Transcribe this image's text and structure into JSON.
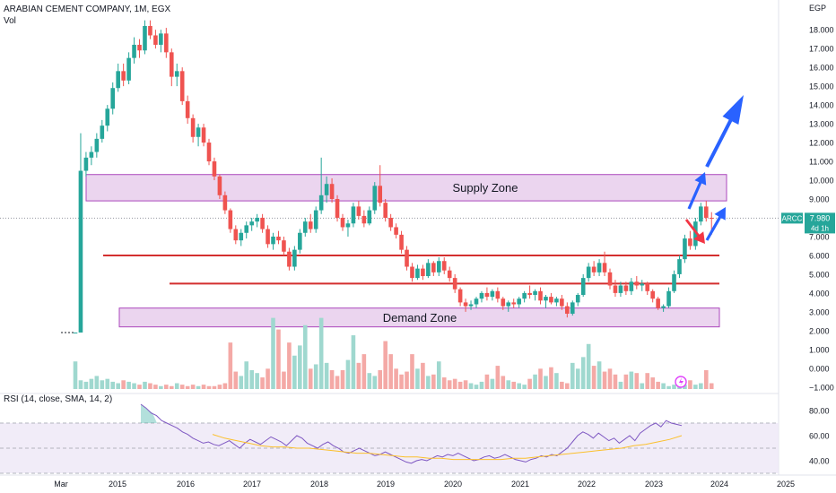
{
  "header": {
    "title": "ARABIAN CEMENT COMPANY, 1M, EGX",
    "vol_label": "Vol",
    "unit": "EGP"
  },
  "rsi": {
    "label": "RSI (14, close, SMA, 14, 2)",
    "ticks": [
      "80.00",
      "60.00",
      "40.00"
    ],
    "band_upper": 70,
    "band_lower": 30
  },
  "badge": {
    "ticker": "ARCC",
    "price": "7.980",
    "countdown": "4d 1h"
  },
  "zones": {
    "supply": {
      "label": "Supply Zone",
      "low": 8.9,
      "high": 10.3
    },
    "demand": {
      "label": "Demand Zone",
      "low": 2.2,
      "high": 3.2
    },
    "lines": [
      6.0,
      4.5
    ]
  },
  "colors": {
    "up": "#26a69a",
    "down": "#ef5350",
    "vol_up": "#9fd8cf",
    "vol_down": "#f4a9a6",
    "zone_fill": "#e1bee7",
    "zone_border": "#ab47bc",
    "line": "#d32f2f",
    "arrow_blue": "#2962ff",
    "arrow_red": "#f23645",
    "rsi": "#7e57c2",
    "rsi_ma": "#fbc02d",
    "badge": "#26a69a",
    "flash": "#e040fb"
  },
  "chart_data": {
    "type": "candlestick",
    "title": "ARABIAN CEMENT COMPANY, 1M, EGX",
    "ylim": [
      -1.2,
      19.2
    ],
    "yticks": [
      "18.000",
      "17.000",
      "16.000",
      "15.000",
      "14.000",
      "13.000",
      "12.000",
      "11.000",
      "10.000",
      "9.000",
      "8.000",
      "7.000",
      "6.000",
      "5.000",
      "4.000",
      "3.000",
      "2.000",
      "1.000",
      "0.000",
      "−1.000"
    ],
    "xticks": [
      "Mar",
      "2015",
      "2016",
      "2017",
      "2018",
      "2019",
      "2020",
      "2021",
      "2022",
      "2023",
      "2024",
      "2025"
    ],
    "current_price": 7.98,
    "candles": [
      [
        1.9,
        1.9,
        1.9,
        1.9
      ],
      [
        1.9,
        12.5,
        1.9,
        10.5
      ],
      [
        10.5,
        11.5,
        10.2,
        11.2
      ],
      [
        11.2,
        11.8,
        10.8,
        11.5
      ],
      [
        11.5,
        12.5,
        11.2,
        12.2
      ],
      [
        12.2,
        13.2,
        12.0,
        12.9
      ],
      [
        12.9,
        14.0,
        12.6,
        13.8
      ],
      [
        13.8,
        15.2,
        13.5,
        14.9
      ],
      [
        14.9,
        16.2,
        14.7,
        15.8
      ],
      [
        15.8,
        16.2,
        15.0,
        15.3
      ],
      [
        15.3,
        16.8,
        15.1,
        16.5
      ],
      [
        16.5,
        17.6,
        16.2,
        17.2
      ],
      [
        17.2,
        17.5,
        16.5,
        16.9
      ],
      [
        16.9,
        18.5,
        16.7,
        18.2
      ],
      [
        18.2,
        18.5,
        17.5,
        17.7
      ],
      [
        17.7,
        18.0,
        17.0,
        17.2
      ],
      [
        17.2,
        18.0,
        16.8,
        17.8
      ],
      [
        17.8,
        18.1,
        16.5,
        16.8
      ],
      [
        16.8,
        17.0,
        15.0,
        15.5
      ],
      [
        15.5,
        16.2,
        15.0,
        15.8
      ],
      [
        15.8,
        16.0,
        14.0,
        14.2
      ],
      [
        14.2,
        14.5,
        13.0,
        13.3
      ],
      [
        13.3,
        13.5,
        12.0,
        12.3
      ],
      [
        12.3,
        13.0,
        11.8,
        12.8
      ],
      [
        12.8,
        13.0,
        11.8,
        12.0
      ],
      [
        12.0,
        12.2,
        10.8,
        11.0
      ],
      [
        11.0,
        11.2,
        10.0,
        10.2
      ],
      [
        10.2,
        10.3,
        9.0,
        9.2
      ],
      [
        9.2,
        9.4,
        8.2,
        8.4
      ],
      [
        8.4,
        8.5,
        7.2,
        7.4
      ],
      [
        7.4,
        7.6,
        6.6,
        6.8
      ],
      [
        6.8,
        7.4,
        6.5,
        7.2
      ],
      [
        7.2,
        7.8,
        6.9,
        7.6
      ],
      [
        7.6,
        8.0,
        7.3,
        7.8
      ],
      [
        7.8,
        8.2,
        7.5,
        8.0
      ],
      [
        8.0,
        8.2,
        7.2,
        7.4
      ],
      [
        7.4,
        7.6,
        6.4,
        6.6
      ],
      [
        6.6,
        7.2,
        6.3,
        7.0
      ],
      [
        7.0,
        7.3,
        6.6,
        6.8
      ],
      [
        6.8,
        7.0,
        6.0,
        6.2
      ],
      [
        6.2,
        6.4,
        5.2,
        5.4
      ],
      [
        5.4,
        6.5,
        5.2,
        6.3
      ],
      [
        6.3,
        7.4,
        6.1,
        7.2
      ],
      [
        7.2,
        8.0,
        7.0,
        7.8
      ],
      [
        7.8,
        8.2,
        7.2,
        7.4
      ],
      [
        7.4,
        8.6,
        7.2,
        8.4
      ],
      [
        8.4,
        11.2,
        8.2,
        9.2
      ],
      [
        9.2,
        10.2,
        8.8,
        9.8
      ],
      [
        9.8,
        10.1,
        8.8,
        9.0
      ],
      [
        9.0,
        9.2,
        7.8,
        8.0
      ],
      [
        8.0,
        8.2,
        7.3,
        7.5
      ],
      [
        7.5,
        7.9,
        7.0,
        7.7
      ],
      [
        7.7,
        8.8,
        7.5,
        8.6
      ],
      [
        8.6,
        8.9,
        7.9,
        8.1
      ],
      [
        8.1,
        8.4,
        7.5,
        7.7
      ],
      [
        7.7,
        8.6,
        7.6,
        8.4
      ],
      [
        8.4,
        9.9,
        8.2,
        9.7
      ],
      [
        9.7,
        10.8,
        8.6,
        8.8
      ],
      [
        8.8,
        9.0,
        7.8,
        8.0
      ],
      [
        8.0,
        8.2,
        7.3,
        7.5
      ],
      [
        7.5,
        7.7,
        6.9,
        7.1
      ],
      [
        7.1,
        7.3,
        6.1,
        6.3
      ],
      [
        6.3,
        6.5,
        5.2,
        5.4
      ],
      [
        5.4,
        5.6,
        4.6,
        4.8
      ],
      [
        4.8,
        5.5,
        4.7,
        5.3
      ],
      [
        5.3,
        5.5,
        4.7,
        4.9
      ],
      [
        4.9,
        5.8,
        4.8,
        5.6
      ],
      [
        5.6,
        5.7,
        4.9,
        5.1
      ],
      [
        5.1,
        5.9,
        4.9,
        5.7
      ],
      [
        5.7,
        5.9,
        5.0,
        5.2
      ],
      [
        5.2,
        5.4,
        4.6,
        4.8
      ],
      [
        4.8,
        5.0,
        4.0,
        4.2
      ],
      [
        4.2,
        4.3,
        3.3,
        3.5
      ],
      [
        3.5,
        3.7,
        3.0,
        3.3
      ],
      [
        3.3,
        3.6,
        3.1,
        3.4
      ],
      [
        3.4,
        3.8,
        3.2,
        3.7
      ],
      [
        3.7,
        4.1,
        3.5,
        4.0
      ],
      [
        4.0,
        4.3,
        3.6,
        3.8
      ],
      [
        3.8,
        4.2,
        3.6,
        4.1
      ],
      [
        4.1,
        4.3,
        3.5,
        3.7
      ],
      [
        3.7,
        3.8,
        3.1,
        3.3
      ],
      [
        3.3,
        3.6,
        3.0,
        3.5
      ],
      [
        3.5,
        3.7,
        3.2,
        3.4
      ],
      [
        3.4,
        3.8,
        3.2,
        3.7
      ],
      [
        3.7,
        4.1,
        3.5,
        4.0
      ],
      [
        4.0,
        4.4,
        3.7,
        3.9
      ],
      [
        3.9,
        4.2,
        3.6,
        4.1
      ],
      [
        4.1,
        4.3,
        3.4,
        3.6
      ],
      [
        3.6,
        3.9,
        3.2,
        3.8
      ],
      [
        3.8,
        4.0,
        3.4,
        3.5
      ],
      [
        3.5,
        3.8,
        3.3,
        3.7
      ],
      [
        3.7,
        3.9,
        3.1,
        3.3
      ],
      [
        3.3,
        3.5,
        2.7,
        2.9
      ],
      [
        2.9,
        3.6,
        2.8,
        3.5
      ],
      [
        3.5,
        4.0,
        3.3,
        3.9
      ],
      [
        3.9,
        5.0,
        3.8,
        4.8
      ],
      [
        4.8,
        5.6,
        4.6,
        5.4
      ],
      [
        5.4,
        5.7,
        4.9,
        5.1
      ],
      [
        5.1,
        5.8,
        4.9,
        5.6
      ],
      [
        5.6,
        6.2,
        4.9,
        5.1
      ],
      [
        5.1,
        5.3,
        4.2,
        4.4
      ],
      [
        4.4,
        4.7,
        3.8,
        4.0
      ],
      [
        4.0,
        4.6,
        3.8,
        4.4
      ],
      [
        4.4,
        4.6,
        3.9,
        4.1
      ],
      [
        4.1,
        4.8,
        3.9,
        4.6
      ],
      [
        4.6,
        4.9,
        4.2,
        4.4
      ],
      [
        4.4,
        4.7,
        4.1,
        4.5
      ],
      [
        4.5,
        4.6,
        3.9,
        4.1
      ],
      [
        4.1,
        4.2,
        3.5,
        3.7
      ],
      [
        3.7,
        3.8,
        3.1,
        3.2
      ],
      [
        3.2,
        3.4,
        3.0,
        3.3
      ],
      [
        3.3,
        4.3,
        3.2,
        4.1
      ],
      [
        4.1,
        5.2,
        4.0,
        5.0
      ],
      [
        5.0,
        6.0,
        4.8,
        5.8
      ],
      [
        5.8,
        7.1,
        5.6,
        6.9
      ],
      [
        6.9,
        7.3,
        6.3,
        6.5
      ],
      [
        6.5,
        8.0,
        6.3,
        7.8
      ],
      [
        7.8,
        8.8,
        7.6,
        8.6
      ],
      [
        8.6,
        8.9,
        7.8,
        8.0
      ],
      [
        8.0,
        8.3,
        7.1,
        7.98
      ]
    ],
    "volume": [
      1.9,
      0.6,
      0.5,
      0.7,
      0.9,
      0.6,
      0.7,
      0.5,
      0.4,
      0.6,
      0.5,
      0.4,
      0.3,
      0.5,
      0.4,
      0.3,
      0.2,
      0.3,
      0.2,
      0.4,
      0.3,
      0.2,
      0.3,
      0.2,
      0.3,
      0.2,
      0.2,
      0.3,
      0.4,
      3.2,
      1.2,
      0.9,
      1.9,
      1.3,
      1.1,
      0.8,
      1.4,
      4.9,
      4.1,
      1.2,
      3.2,
      2.3,
      3.0,
      4.4,
      1.4,
      1.7,
      4.9,
      1.8,
      1.3,
      0.9,
      1.3,
      2.0,
      3.7,
      1.8,
      2.4,
      1.1,
      0.9,
      1.3,
      3.3,
      2.4,
      1.4,
      1.0,
      1.2,
      2.4,
      1.4,
      1.8,
      0.9,
      1.0,
      1.9,
      0.8,
      0.6,
      0.7,
      0.5,
      0.6,
      0.4,
      0.3,
      0.5,
      1.0,
      0.7,
      1.6,
      0.9,
      0.6,
      0.5,
      0.4,
      0.3,
      0.7,
      1.0,
      1.4,
      0.9,
      1.5,
      1.1,
      0.5,
      0.4,
      1.8,
      1.4,
      2.2,
      3.1,
      1.6,
      1.9,
      1.2,
      1.4,
      1.0,
      0.5,
      1.0,
      1.2,
      1.1,
      0.4,
      1.1,
      0.8,
      0.5,
      0.4,
      0.2,
      0.3,
      0.4,
      0.3,
      0.6,
      0.3,
      0.4,
      1.3,
      0.4
    ],
    "rsi": [
      85,
      82,
      78,
      76,
      72,
      70,
      68,
      66,
      63,
      61,
      58,
      56,
      54,
      55,
      53,
      52,
      54,
      56,
      53,
      50,
      54,
      57,
      55,
      53,
      56,
      59,
      57,
      55,
      52,
      56,
      60,
      58,
      54,
      52,
      50,
      53,
      55,
      52,
      50,
      47,
      46,
      48,
      50,
      48,
      46,
      44,
      45,
      47,
      45,
      43,
      41,
      39,
      38,
      40,
      41,
      40,
      42,
      44,
      43,
      45,
      44,
      46,
      44,
      42,
      40,
      41,
      43,
      44,
      42,
      43,
      45,
      43,
      41,
      40,
      39,
      41,
      42,
      44,
      43,
      45,
      44,
      47,
      50,
      55,
      60,
      63,
      61,
      58,
      62,
      59,
      56,
      58,
      54,
      57,
      60,
      56,
      62,
      65,
      68,
      70,
      67,
      72,
      70,
      69,
      68
    ],
    "rsi_ma": [
      61,
      58,
      56,
      54,
      52,
      51,
      51,
      50,
      50,
      49,
      48,
      47,
      46,
      46,
      45,
      44,
      43,
      43,
      42,
      42,
      41,
      41,
      41,
      41,
      41,
      42,
      42,
      43,
      44,
      45,
      46,
      47,
      48,
      49,
      50,
      52,
      53,
      55,
      57,
      60
    ]
  }
}
